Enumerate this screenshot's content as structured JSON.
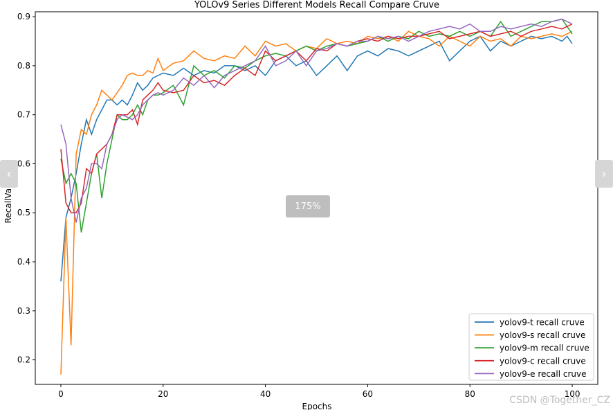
{
  "viewer": {
    "zoom_label": "175%",
    "watermark": "CSDN @Together_CZ",
    "prev_icon": "chevron-left-icon",
    "next_icon": "chevron-right-icon"
  },
  "chart_data": {
    "type": "line",
    "title": "YOLOv9 Series Different Models Recall Compare Cruve",
    "xlabel": "Epochs",
    "ylabel": "RecallValue",
    "xlim": [
      -5,
      105
    ],
    "ylim": [
      0.15,
      0.91
    ],
    "xticks": [
      0,
      20,
      40,
      60,
      80,
      100
    ],
    "yticks": [
      0.2,
      0.3,
      0.4,
      0.5,
      0.6,
      0.7,
      0.8,
      0.9
    ],
    "grid": false,
    "legend_position": "lower-right",
    "colors": [
      "#1f77b4",
      "#ff7f0e",
      "#2ca02c",
      "#d62728",
      "#9467bd"
    ],
    "series": [
      {
        "name": "yolov9-t recall cruve",
        "points": [
          [
            0,
            0.36
          ],
          [
            1,
            0.49
          ],
          [
            2,
            0.53
          ],
          [
            3,
            0.58
          ],
          [
            4,
            0.64
          ],
          [
            5,
            0.69
          ],
          [
            6,
            0.66
          ],
          [
            7,
            0.69
          ],
          [
            8,
            0.71
          ],
          [
            9,
            0.73
          ],
          [
            10,
            0.73
          ],
          [
            11,
            0.72
          ],
          [
            12,
            0.73
          ],
          [
            13,
            0.72
          ],
          [
            14,
            0.74
          ],
          [
            15,
            0.765
          ],
          [
            16,
            0.75
          ],
          [
            17,
            0.76
          ],
          [
            18,
            0.775
          ],
          [
            19,
            0.78
          ],
          [
            20,
            0.785
          ],
          [
            22,
            0.78
          ],
          [
            24,
            0.795
          ],
          [
            26,
            0.78
          ],
          [
            28,
            0.79
          ],
          [
            30,
            0.785
          ],
          [
            32,
            0.8
          ],
          [
            34,
            0.8
          ],
          [
            36,
            0.79
          ],
          [
            38,
            0.8
          ],
          [
            40,
            0.78
          ],
          [
            42,
            0.81
          ],
          [
            44,
            0.82
          ],
          [
            46,
            0.8
          ],
          [
            48,
            0.81
          ],
          [
            50,
            0.78
          ],
          [
            52,
            0.8
          ],
          [
            54,
            0.82
          ],
          [
            56,
            0.79
          ],
          [
            58,
            0.82
          ],
          [
            60,
            0.83
          ],
          [
            62,
            0.82
          ],
          [
            64,
            0.835
          ],
          [
            66,
            0.83
          ],
          [
            68,
            0.82
          ],
          [
            70,
            0.83
          ],
          [
            72,
            0.84
          ],
          [
            74,
            0.85
          ],
          [
            76,
            0.81
          ],
          [
            78,
            0.83
          ],
          [
            80,
            0.85
          ],
          [
            82,
            0.86
          ],
          [
            84,
            0.83
          ],
          [
            86,
            0.85
          ],
          [
            88,
            0.84
          ],
          [
            90,
            0.85
          ],
          [
            92,
            0.86
          ],
          [
            94,
            0.855
          ],
          [
            96,
            0.86
          ],
          [
            98,
            0.85
          ],
          [
            99,
            0.86
          ],
          [
            100,
            0.845
          ]
        ]
      },
      {
        "name": "yolov9-s recall cruve",
        "points": [
          [
            0,
            0.17
          ],
          [
            1,
            0.49
          ],
          [
            2,
            0.23
          ],
          [
            3,
            0.62
          ],
          [
            4,
            0.67
          ],
          [
            5,
            0.66
          ],
          [
            6,
            0.7
          ],
          [
            7,
            0.72
          ],
          [
            8,
            0.75
          ],
          [
            9,
            0.74
          ],
          [
            10,
            0.73
          ],
          [
            11,
            0.745
          ],
          [
            12,
            0.76
          ],
          [
            13,
            0.78
          ],
          [
            14,
            0.785
          ],
          [
            15,
            0.78
          ],
          [
            16,
            0.78
          ],
          [
            17,
            0.79
          ],
          [
            18,
            0.785
          ],
          [
            19,
            0.815
          ],
          [
            20,
            0.79
          ],
          [
            22,
            0.805
          ],
          [
            24,
            0.81
          ],
          [
            26,
            0.83
          ],
          [
            28,
            0.815
          ],
          [
            30,
            0.81
          ],
          [
            32,
            0.82
          ],
          [
            34,
            0.815
          ],
          [
            36,
            0.84
          ],
          [
            38,
            0.82
          ],
          [
            40,
            0.85
          ],
          [
            42,
            0.84
          ],
          [
            44,
            0.845
          ],
          [
            46,
            0.83
          ],
          [
            48,
            0.84
          ],
          [
            50,
            0.835
          ],
          [
            52,
            0.855
          ],
          [
            54,
            0.845
          ],
          [
            56,
            0.85
          ],
          [
            58,
            0.845
          ],
          [
            60,
            0.86
          ],
          [
            62,
            0.855
          ],
          [
            64,
            0.86
          ],
          [
            66,
            0.85
          ],
          [
            68,
            0.87
          ],
          [
            70,
            0.86
          ],
          [
            72,
            0.855
          ],
          [
            74,
            0.84
          ],
          [
            76,
            0.86
          ],
          [
            78,
            0.85
          ],
          [
            80,
            0.84
          ],
          [
            82,
            0.86
          ],
          [
            84,
            0.85
          ],
          [
            86,
            0.855
          ],
          [
            88,
            0.84
          ],
          [
            90,
            0.86
          ],
          [
            92,
            0.855
          ],
          [
            94,
            0.86
          ],
          [
            96,
            0.865
          ],
          [
            98,
            0.86
          ],
          [
            100,
            0.87
          ]
        ]
      },
      {
        "name": "yolov9-m recall cruve",
        "points": [
          [
            0,
            0.61
          ],
          [
            1,
            0.56
          ],
          [
            2,
            0.58
          ],
          [
            3,
            0.56
          ],
          [
            4,
            0.46
          ],
          [
            5,
            0.52
          ],
          [
            6,
            0.58
          ],
          [
            7,
            0.62
          ],
          [
            8,
            0.53
          ],
          [
            9,
            0.6
          ],
          [
            10,
            0.65
          ],
          [
            11,
            0.7
          ],
          [
            12,
            0.69
          ],
          [
            13,
            0.69
          ],
          [
            14,
            0.7
          ],
          [
            15,
            0.72
          ],
          [
            16,
            0.7
          ],
          [
            17,
            0.73
          ],
          [
            18,
            0.74
          ],
          [
            19,
            0.74
          ],
          [
            20,
            0.745
          ],
          [
            22,
            0.76
          ],
          [
            24,
            0.72
          ],
          [
            26,
            0.8
          ],
          [
            28,
            0.78
          ],
          [
            30,
            0.79
          ],
          [
            32,
            0.775
          ],
          [
            34,
            0.8
          ],
          [
            36,
            0.795
          ],
          [
            38,
            0.81
          ],
          [
            40,
            0.82
          ],
          [
            42,
            0.825
          ],
          [
            44,
            0.82
          ],
          [
            46,
            0.83
          ],
          [
            48,
            0.84
          ],
          [
            50,
            0.83
          ],
          [
            52,
            0.84
          ],
          [
            54,
            0.845
          ],
          [
            56,
            0.84
          ],
          [
            58,
            0.845
          ],
          [
            60,
            0.85
          ],
          [
            62,
            0.86
          ],
          [
            64,
            0.85
          ],
          [
            66,
            0.86
          ],
          [
            68,
            0.855
          ],
          [
            70,
            0.87
          ],
          [
            72,
            0.86
          ],
          [
            74,
            0.865
          ],
          [
            76,
            0.86
          ],
          [
            78,
            0.87
          ],
          [
            80,
            0.86
          ],
          [
            82,
            0.87
          ],
          [
            84,
            0.86
          ],
          [
            86,
            0.89
          ],
          [
            88,
            0.86
          ],
          [
            90,
            0.87
          ],
          [
            92,
            0.88
          ],
          [
            94,
            0.89
          ],
          [
            96,
            0.89
          ],
          [
            98,
            0.895
          ],
          [
            100,
            0.865
          ]
        ]
      },
      {
        "name": "yolov9-c recall cruve",
        "points": [
          [
            0,
            0.63
          ],
          [
            1,
            0.52
          ],
          [
            2,
            0.5
          ],
          [
            3,
            0.5
          ],
          [
            4,
            0.52
          ],
          [
            5,
            0.59
          ],
          [
            6,
            0.58
          ],
          [
            7,
            0.62
          ],
          [
            8,
            0.63
          ],
          [
            9,
            0.64
          ],
          [
            10,
            0.66
          ],
          [
            11,
            0.7
          ],
          [
            12,
            0.7
          ],
          [
            13,
            0.7
          ],
          [
            14,
            0.71
          ],
          [
            15,
            0.68
          ],
          [
            16,
            0.73
          ],
          [
            17,
            0.74
          ],
          [
            18,
            0.75
          ],
          [
            19,
            0.765
          ],
          [
            20,
            0.75
          ],
          [
            22,
            0.745
          ],
          [
            24,
            0.75
          ],
          [
            26,
            0.78
          ],
          [
            28,
            0.765
          ],
          [
            30,
            0.77
          ],
          [
            32,
            0.76
          ],
          [
            34,
            0.78
          ],
          [
            36,
            0.795
          ],
          [
            38,
            0.78
          ],
          [
            40,
            0.83
          ],
          [
            42,
            0.81
          ],
          [
            44,
            0.82
          ],
          [
            46,
            0.83
          ],
          [
            48,
            0.81
          ],
          [
            50,
            0.835
          ],
          [
            52,
            0.83
          ],
          [
            54,
            0.845
          ],
          [
            56,
            0.84
          ],
          [
            58,
            0.85
          ],
          [
            60,
            0.855
          ],
          [
            62,
            0.85
          ],
          [
            64,
            0.86
          ],
          [
            66,
            0.855
          ],
          [
            68,
            0.86
          ],
          [
            70,
            0.86
          ],
          [
            72,
            0.865
          ],
          [
            74,
            0.87
          ],
          [
            76,
            0.855
          ],
          [
            78,
            0.86
          ],
          [
            80,
            0.865
          ],
          [
            82,
            0.87
          ],
          [
            84,
            0.86
          ],
          [
            86,
            0.865
          ],
          [
            88,
            0.87
          ],
          [
            90,
            0.86
          ],
          [
            92,
            0.87
          ],
          [
            94,
            0.875
          ],
          [
            96,
            0.88
          ],
          [
            98,
            0.875
          ],
          [
            100,
            0.885
          ]
        ]
      },
      {
        "name": "yolov9-e recall cruve",
        "points": [
          [
            0,
            0.68
          ],
          [
            1,
            0.64
          ],
          [
            2,
            0.53
          ],
          [
            3,
            0.48
          ],
          [
            4,
            0.53
          ],
          [
            5,
            0.55
          ],
          [
            6,
            0.6
          ],
          [
            7,
            0.6
          ],
          [
            8,
            0.59
          ],
          [
            9,
            0.64
          ],
          [
            10,
            0.66
          ],
          [
            11,
            0.69
          ],
          [
            12,
            0.7
          ],
          [
            13,
            0.695
          ],
          [
            14,
            0.69
          ],
          [
            15,
            0.7
          ],
          [
            16,
            0.72
          ],
          [
            17,
            0.73
          ],
          [
            18,
            0.74
          ],
          [
            19,
            0.745
          ],
          [
            20,
            0.74
          ],
          [
            22,
            0.75
          ],
          [
            24,
            0.775
          ],
          [
            26,
            0.76
          ],
          [
            28,
            0.78
          ],
          [
            30,
            0.755
          ],
          [
            32,
            0.78
          ],
          [
            34,
            0.79
          ],
          [
            36,
            0.8
          ],
          [
            38,
            0.81
          ],
          [
            40,
            0.84
          ],
          [
            42,
            0.8
          ],
          [
            44,
            0.81
          ],
          [
            46,
            0.83
          ],
          [
            48,
            0.8
          ],
          [
            50,
            0.83
          ],
          [
            52,
            0.835
          ],
          [
            54,
            0.845
          ],
          [
            56,
            0.84
          ],
          [
            58,
            0.85
          ],
          [
            60,
            0.85
          ],
          [
            62,
            0.86
          ],
          [
            64,
            0.855
          ],
          [
            66,
            0.86
          ],
          [
            68,
            0.85
          ],
          [
            70,
            0.86
          ],
          [
            72,
            0.87
          ],
          [
            74,
            0.875
          ],
          [
            76,
            0.88
          ],
          [
            78,
            0.875
          ],
          [
            80,
            0.885
          ],
          [
            82,
            0.87
          ],
          [
            84,
            0.87
          ],
          [
            86,
            0.88
          ],
          [
            88,
            0.875
          ],
          [
            90,
            0.88
          ],
          [
            92,
            0.885
          ],
          [
            94,
            0.88
          ],
          [
            96,
            0.89
          ],
          [
            98,
            0.895
          ],
          [
            100,
            0.885
          ]
        ]
      }
    ]
  }
}
